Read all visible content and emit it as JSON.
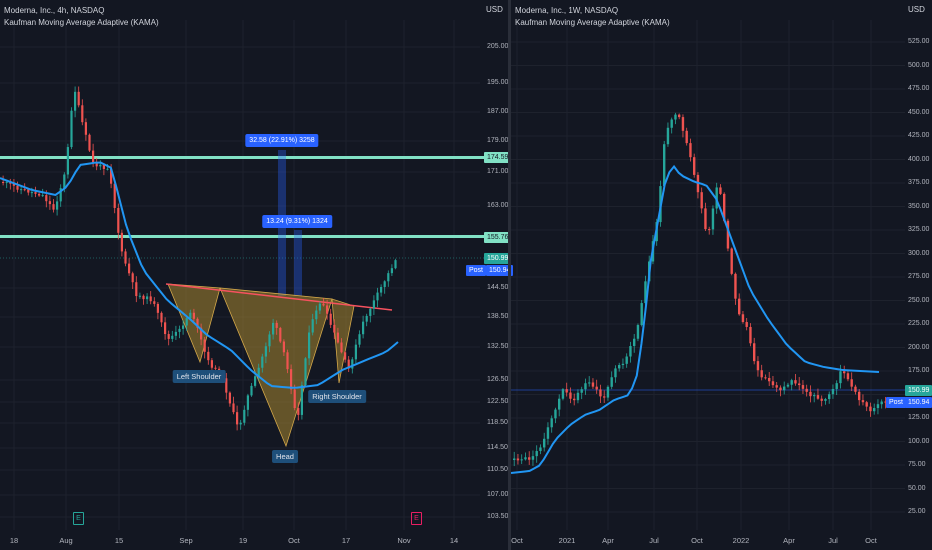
{
  "left": {
    "legend_line1": "Moderna, Inc., 4h, NASDAQ",
    "legend_line2": "Kaufman Moving Average Adaptive (KAMA)",
    "currency": "USD",
    "y_ticks": [
      "205.00",
      "195.00",
      "187.00",
      "179.00",
      "171.00",
      "163.00",
      "155.76",
      "150.99",
      "144.50",
      "138.50",
      "132.50",
      "126.50",
      "122.50",
      "118.50",
      "114.50",
      "110.50",
      "107.00",
      "103.50"
    ],
    "x_ticks": [
      "18",
      "Aug",
      "15",
      "Sep",
      "19",
      "Oct",
      "17",
      "Nov",
      "14"
    ],
    "price_badge_upper": "174.59",
    "price_badge_mid": "155.76",
    "price_badge_current": "150.99",
    "post_label": "Post",
    "post_value": "150.94",
    "measure_upper": "32.58 (22.91%) 3258",
    "measure_lower": "13.24 (9.31%) 1324",
    "pattern_labels": {
      "left_shoulder": "Left Shoulder",
      "head": "Head",
      "right_shoulder": "Right Shoulder"
    },
    "earnings_marks": [
      "E",
      "E"
    ],
    "colors": {
      "up": "#26a69a",
      "down": "#ef5350",
      "kama": "#2196f3",
      "level": "#81e1c5",
      "neckline": "#f7525f",
      "pattern_fill": "#a8862f"
    }
  },
  "right": {
    "legend_line1": "Moderna, Inc., 1W, NASDAQ",
    "legend_line2": "Kaufman Moving Average Adaptive (KAMA)",
    "currency": "USD",
    "y_ticks": [
      "525.00",
      "500.00",
      "475.00",
      "450.00",
      "425.00",
      "400.00",
      "375.00",
      "350.00",
      "325.00",
      "300.00",
      "275.00",
      "250.00",
      "225.00",
      "200.00",
      "175.00",
      "150.00",
      "125.00",
      "100.00",
      "75.00",
      "50.00",
      "25.00"
    ],
    "x_ticks": [
      "Oct",
      "2021",
      "Apr",
      "Jul",
      "Oct",
      "2022",
      "Apr",
      "Jul",
      "Oct"
    ],
    "price_badge_current": "150.99",
    "post_label": "Post",
    "post_value": "150.94"
  }
}
